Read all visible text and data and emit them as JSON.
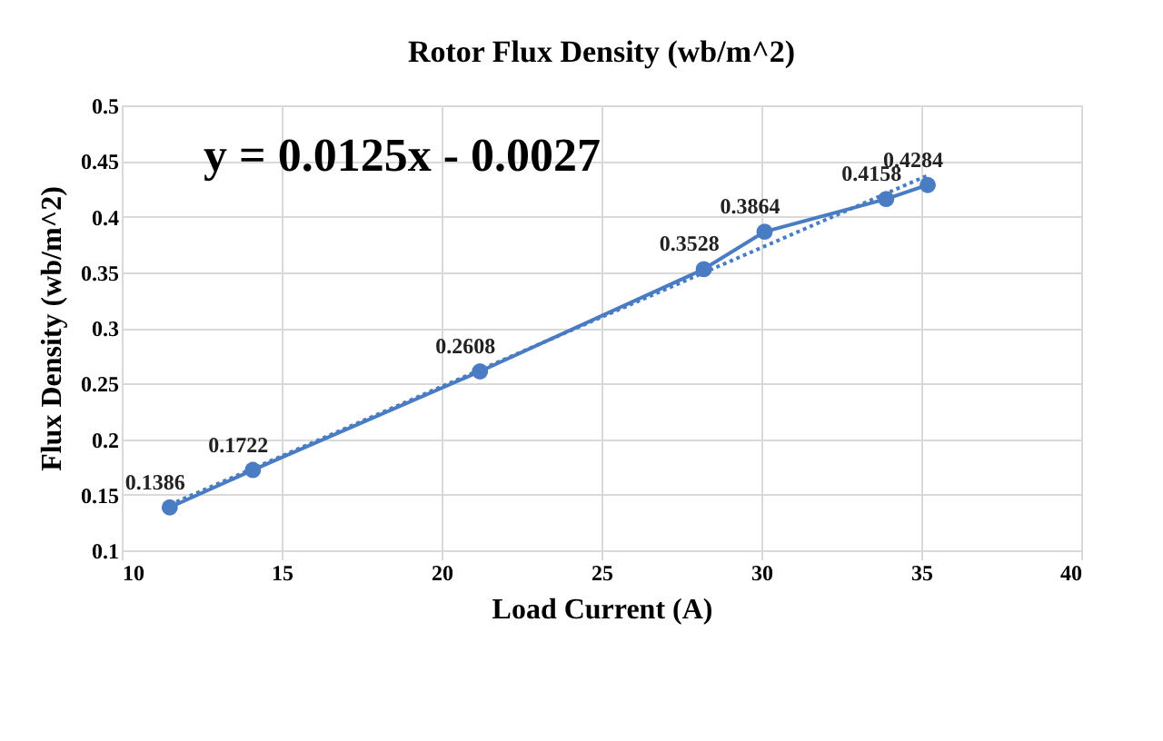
{
  "chart_data": {
    "type": "line",
    "title": "Rotor Flux Density (wb/m^2)",
    "xlabel": "Load Current (A)",
    "ylabel": "Flux Density (wb/m^2)",
    "annotations": [
      "y = 0.0125x - 0.0027"
    ],
    "series": [
      {
        "color": "#4a7cc4",
        "x": [
          11.5,
          14.1,
          21.2,
          28.2,
          30.1,
          33.9,
          35.2
        ],
        "values": [
          0.1386,
          0.1722,
          0.2608,
          0.3528,
          0.3864,
          0.4158,
          0.4284
        ],
        "value_labels": [
          "0.1386",
          "0.1722",
          "0.2608",
          "0.3528",
          "0.3864",
          "0.4158",
          "0.4284"
        ],
        "marker": "circle",
        "line_style": "solid"
      },
      {
        "color": "#4a7cc4",
        "x": [
          11.5,
          35.2
        ],
        "values": [
          0.141,
          0.437
        ],
        "marker": "none",
        "line_style": "dotted"
      }
    ],
    "xlim": [
      10,
      40
    ],
    "xticks": [
      10,
      15,
      20,
      25,
      30,
      35,
      40
    ],
    "ylim": [
      0.1,
      0.5
    ],
    "yticks": [
      0.1,
      0.15,
      0.2,
      0.25,
      0.3,
      0.35,
      0.4,
      0.45,
      0.5
    ],
    "grid": true
  }
}
